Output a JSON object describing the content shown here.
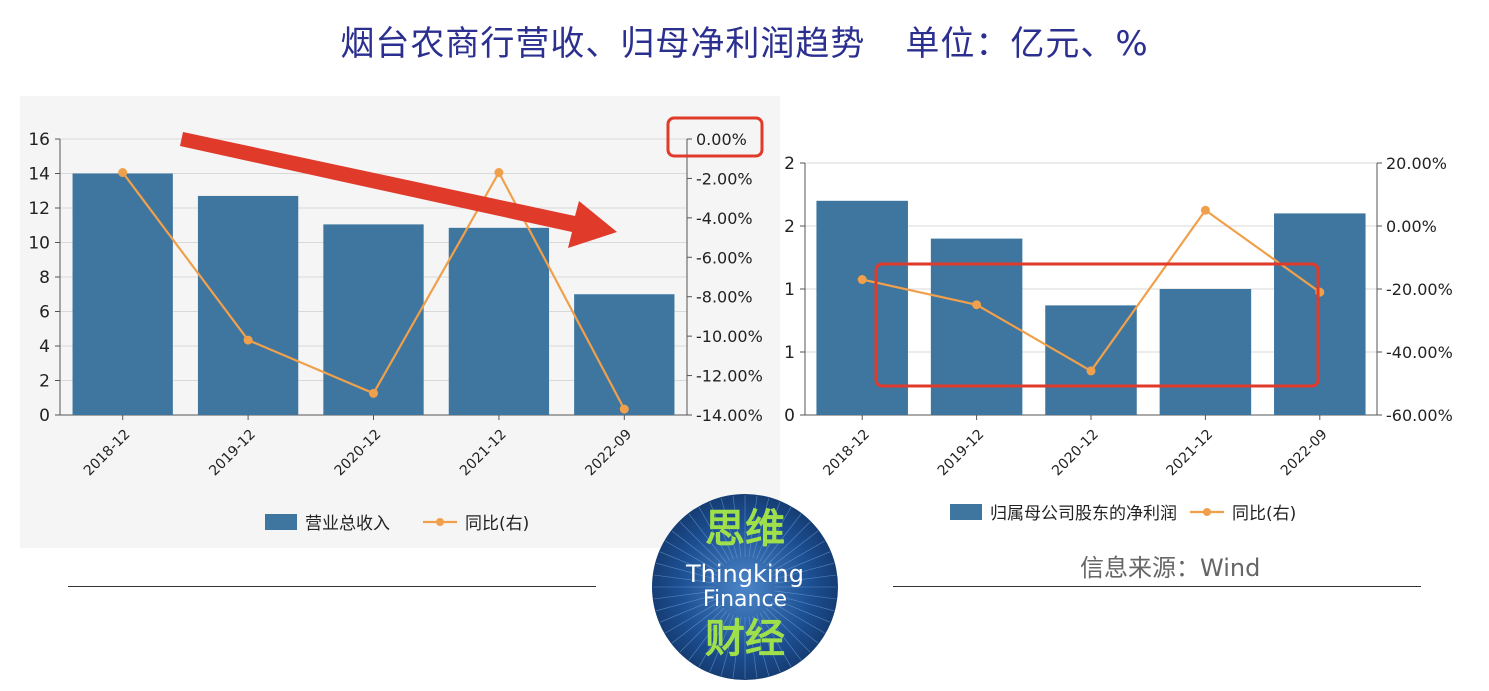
{
  "header": {
    "title": "烟台农商行营收、归母净利润趋势",
    "unit": "单位：亿元、%"
  },
  "source": "信息来源：Wind",
  "logo": {
    "cn_top": "思维",
    "en_line1": "Thingking",
    "en_line2": "Finance",
    "cn_bottom": "财经"
  },
  "colors": {
    "bar": "#3e76a0",
    "line": "#f0a04b",
    "accent": "#e03a2a",
    "title": "#2b2f8f"
  },
  "chart_data": [
    {
      "type": "bar",
      "categories": [
        "2018-12",
        "2019-12",
        "2020-12",
        "2021-12",
        "2022-09"
      ],
      "series": [
        {
          "name": "营业总收入",
          "type": "bar",
          "axis": "left",
          "values": [
            14.0,
            12.7,
            11.05,
            10.85,
            7.0
          ]
        },
        {
          "name": "同比(右)",
          "type": "line",
          "axis": "right",
          "values": [
            -1.7,
            -10.2,
            -12.9,
            -1.7,
            -13.7
          ]
        }
      ],
      "yleft": {
        "min": 0,
        "max": 16,
        "ticks": [
          "0",
          "2",
          "4",
          "6",
          "8",
          "10",
          "12",
          "14",
          "16"
        ]
      },
      "yright": {
        "min": -14,
        "max": 0,
        "ticks": [
          "-14.00%",
          "-12.00%",
          "-10.00%",
          "-8.00%",
          "-6.00%",
          "-4.00%",
          "-2.00%",
          "0.00%"
        ]
      },
      "grid": true,
      "legend": "bottom",
      "annotations": [
        "red arrow pointing down-right indicating decline",
        "red box around 0.00% tick"
      ]
    },
    {
      "type": "bar",
      "categories": [
        "2018-12",
        "2019-12",
        "2020-12",
        "2021-12",
        "2022-09"
      ],
      "series": [
        {
          "name": "归属母公司股东的净利润",
          "type": "bar",
          "axis": "left",
          "values": [
            1.7,
            1.4,
            0.87,
            1.0,
            1.6
          ]
        },
        {
          "name": "同比(右)",
          "type": "line",
          "axis": "right",
          "values": [
            -17.0,
            -25.0,
            -46.0,
            5.0,
            -21.0
          ]
        }
      ],
      "yleft": {
        "min": 0,
        "max": 2,
        "ticks": [
          "0",
          "1",
          "1",
          "2",
          "2"
        ]
      },
      "yright": {
        "min": -60,
        "max": 20,
        "ticks": [
          "-60.00%",
          "-40.00%",
          "-20.00%",
          "0.00%",
          "20.00%"
        ]
      },
      "grid": true,
      "legend": "bottom",
      "annotations": [
        "red box around 2018-12 to 2022-09 lower region"
      ]
    }
  ]
}
